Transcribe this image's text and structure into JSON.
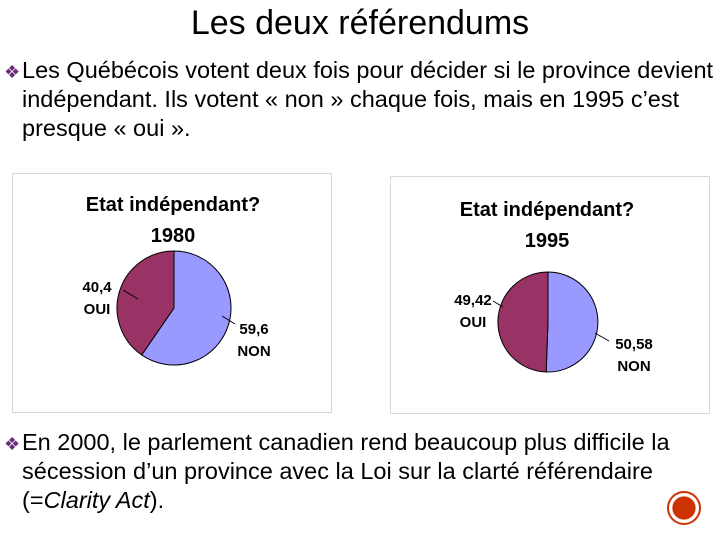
{
  "title": "Les deux référendums",
  "bullets": [
    {
      "text": "Les Québécois votent deux fois pour décider si le province devient indépendant. Ils votent « non » chaque fois, mais en 1995 c’est presque « oui »."
    },
    {
      "text_before": "En 2000, le parlement canadien rend beaucoup plus difficile la sécession d’un province avec la Loi sur la clarté référendaire (=",
      "text_italic": "Clarity Act",
      "text_after": ")."
    }
  ],
  "colors": {
    "non": "#9999ff",
    "oui": "#993366",
    "bullet": "#6b2b77"
  },
  "icons": {
    "bullet": "diamond-bullet-icon",
    "nav": "circle-button-icon"
  },
  "chart_data": [
    {
      "type": "pie",
      "title": "Etat indépendant?",
      "subtitle": "1980",
      "slices": [
        {
          "value": 59.6,
          "label": "59,6",
          "name": "NON",
          "color": "#9999ff"
        },
        {
          "value": 40.4,
          "label": "40,4",
          "name": "OUI",
          "color": "#993366"
        }
      ]
    },
    {
      "type": "pie",
      "title": "Etat indépendant?",
      "subtitle": "1995",
      "slices": [
        {
          "value": 50.58,
          "label": "50,58",
          "name": "NON",
          "color": "#9999ff"
        },
        {
          "value": 49.42,
          "label": "49,42",
          "name": "OUI",
          "color": "#993366"
        }
      ]
    }
  ]
}
